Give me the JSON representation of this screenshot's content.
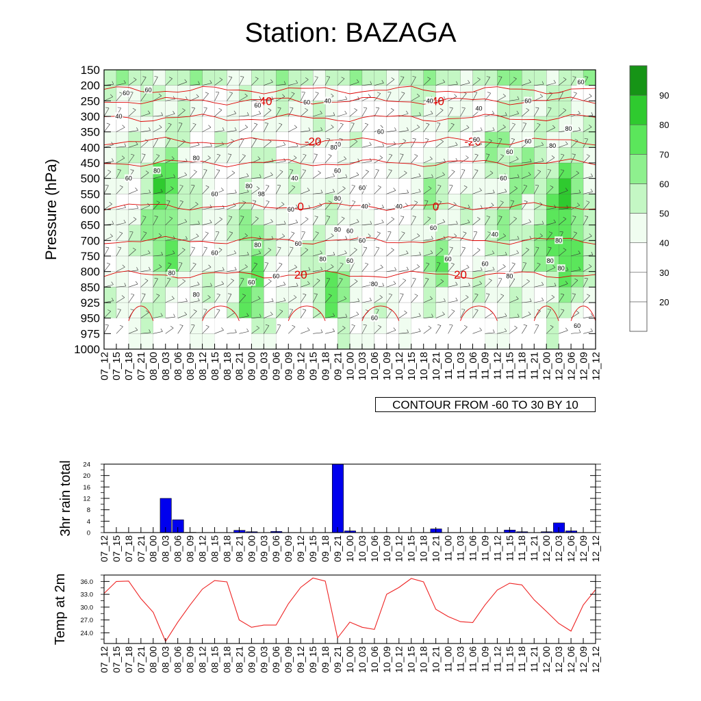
{
  "title": "Station: BAZAGA",
  "contour_note": "CONTOUR FROM -60 TO 30 BY 10",
  "colors": {
    "rh_bins": [
      "#ffffff",
      "#ffffff",
      "#ffffff",
      "#f0fdf0",
      "#c4f7c4",
      "#8ef08e",
      "#5be65b",
      "#2fca2f",
      "#169416"
    ],
    "temp_contour": "#dd0000",
    "rain_bar": "#0000ee",
    "temp_line": "#ee2222"
  },
  "time_labels": [
    "07_12",
    "07_15",
    "07_18",
    "07_21",
    "08_00",
    "08_03",
    "08_06",
    "08_09",
    "08_12",
    "08_15",
    "08_18",
    "08_21",
    "09_00",
    "09_03",
    "09_06",
    "09_09",
    "09_12",
    "09_15",
    "09_18",
    "09_21",
    "10_00",
    "10_03",
    "10_06",
    "10_09",
    "10_12",
    "10_15",
    "10_18",
    "10_21",
    "11_00",
    "11_03",
    "11_06",
    "11_09",
    "11_12",
    "11_15",
    "11_18",
    "11_21",
    "12_00",
    "12_03",
    "12_06",
    "12_09",
    "12_12"
  ],
  "chart_data": [
    {
      "type": "heatmap",
      "title": "Station: BAZAGA",
      "ylabel": "Pressure (hPa)",
      "y_ticks": [
        "150",
        "200",
        "250",
        "300",
        "350",
        "400",
        "450",
        "500",
        "550",
        "600",
        "650",
        "700",
        "750",
        "800",
        "850",
        "925",
        "950",
        "975",
        "1000"
      ],
      "colorbar_labels": [
        "20",
        "30",
        "40",
        "50",
        "60",
        "70",
        "80",
        "90"
      ],
      "colorbar_levels": [
        20,
        30,
        40,
        50,
        60,
        70,
        80,
        90
      ],
      "temperature_contours": [
        {
          "label": "-40",
          "pressure": 250
        },
        {
          "label": "-20",
          "pressure": 380
        },
        {
          "label": "0",
          "pressure": 590
        },
        {
          "label": "20",
          "pressure": 810
        }
      ],
      "annotation": "CONTOUR FROM -60 TO 30 BY 10"
    },
    {
      "type": "bar",
      "ylabel": "3hr rain total",
      "y_ticks": [
        "24",
        "20",
        "16",
        "12",
        "8",
        "4",
        "0"
      ],
      "ylim": [
        0,
        24
      ],
      "values": [
        0,
        0,
        0,
        0,
        0,
        12.0,
        4.5,
        0.1,
        0,
        0,
        0,
        0.8,
        0.3,
        0,
        0.4,
        0,
        0,
        0,
        0,
        24.0,
        0.6,
        0,
        0,
        0,
        0,
        0,
        0,
        1.3,
        0,
        0,
        0,
        0,
        0,
        0.9,
        0.3,
        0,
        0.3,
        3.4,
        0.6,
        0,
        0
      ]
    },
    {
      "type": "line",
      "ylabel": "Temp at 2m",
      "y_ticks": [
        "36.0",
        "33.0",
        "30.0",
        "27.0",
        "24.0"
      ],
      "ylim": [
        21.5,
        37.5
      ],
      "values": [
        33.2,
        36.0,
        36.1,
        32.0,
        28.8,
        22.0,
        26.5,
        30.5,
        34.2,
        36.2,
        35.9,
        27.0,
        25.3,
        25.8,
        25.8,
        30.8,
        34.6,
        36.8,
        36.1,
        22.8,
        26.5,
        25.3,
        24.8,
        33.0,
        34.6,
        36.7,
        35.9,
        29.5,
        27.8,
        26.6,
        26.4,
        30.5,
        34.0,
        35.6,
        35.2,
        31.7,
        29.0,
        26.2,
        24.4,
        30.5,
        34.1
      ]
    }
  ]
}
